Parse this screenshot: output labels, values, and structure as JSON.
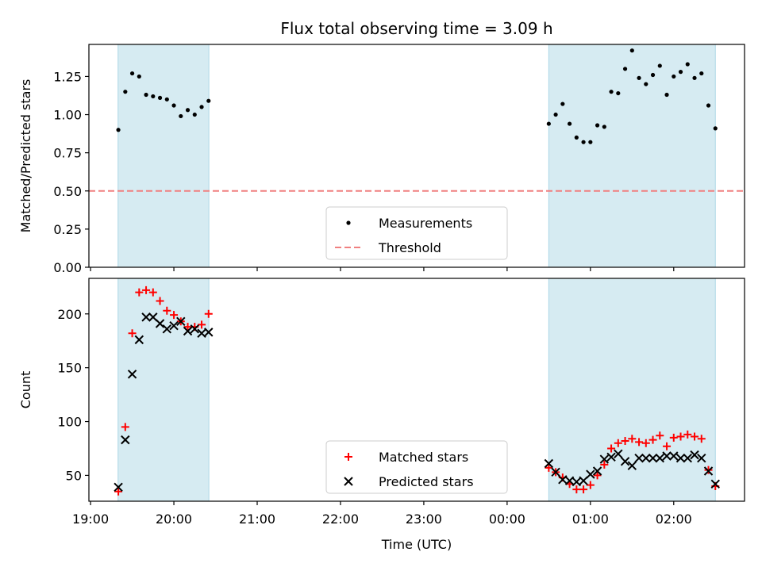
{
  "chart_data": {
    "type": "scatter",
    "title": "Flux total observing time = 3.09 h",
    "xlabel": "Time (UTC)",
    "x_tick_labels": [
      "19:00",
      "20:00",
      "21:00",
      "22:00",
      "23:00",
      "00:00",
      "01:00",
      "02:00"
    ],
    "x_tick_hours": [
      0,
      1,
      2,
      3,
      4,
      5,
      6,
      7
    ],
    "x_origin": "19:00",
    "xlim_hours": [
      -0.02,
      7.85
    ],
    "shaded_regions_hours": [
      [
        0.33,
        1.42
      ],
      [
        5.5,
        7.5
      ]
    ],
    "shade_color": "#add8e6",
    "panels": [
      {
        "ylabel": "Matched/Predicted stars",
        "ylim": [
          0.0,
          1.46
        ],
        "yticks": [
          0.0,
          0.25,
          0.5,
          0.75,
          1.0,
          1.25
        ],
        "ytick_labels": [
          "0.00",
          "0.25",
          "0.50",
          "0.75",
          "1.00",
          "1.25"
        ],
        "threshold": {
          "name": "Threshold",
          "value": 0.5,
          "color": "#f08080"
        },
        "legend": {
          "position": "lower-center",
          "entries": [
            "Measurements",
            "Threshold"
          ]
        },
        "series": [
          {
            "name": "Measurements",
            "marker": "dot",
            "color": "#000000",
            "points": [
              [
                "19:20",
                0.9
              ],
              [
                "19:25",
                1.15
              ],
              [
                "19:30",
                1.27
              ],
              [
                "19:35",
                1.25
              ],
              [
                "19:40",
                1.13
              ],
              [
                "19:45",
                1.12
              ],
              [
                "19:50",
                1.11
              ],
              [
                "19:55",
                1.1
              ],
              [
                "20:00",
                1.06
              ],
              [
                "20:05",
                0.99
              ],
              [
                "20:10",
                1.03
              ],
              [
                "20:15",
                1.0
              ],
              [
                "20:20",
                1.05
              ],
              [
                "20:25",
                1.09
              ],
              [
                "00:30",
                0.94
              ],
              [
                "00:35",
                1.0
              ],
              [
                "00:40",
                1.07
              ],
              [
                "00:45",
                0.94
              ],
              [
                "00:50",
                0.85
              ],
              [
                "00:55",
                0.82
              ],
              [
                "01:00",
                0.82
              ],
              [
                "01:05",
                0.93
              ],
              [
                "01:10",
                0.92
              ],
              [
                "01:15",
                1.15
              ],
              [
                "01:20",
                1.14
              ],
              [
                "01:25",
                1.3
              ],
              [
                "01:30",
                1.42
              ],
              [
                "01:35",
                1.24
              ],
              [
                "01:40",
                1.2
              ],
              [
                "01:45",
                1.26
              ],
              [
                "01:50",
                1.32
              ],
              [
                "01:55",
                1.13
              ],
              [
                "02:00",
                1.25
              ],
              [
                "02:05",
                1.28
              ],
              [
                "02:10",
                1.33
              ],
              [
                "02:15",
                1.24
              ],
              [
                "02:20",
                1.27
              ],
              [
                "02:25",
                1.06
              ],
              [
                "02:30",
                0.91
              ]
            ]
          }
        ]
      },
      {
        "ylabel": "Count",
        "ylim": [
          26,
          233
        ],
        "yticks": [
          50,
          100,
          150,
          200
        ],
        "ytick_labels": [
          "50",
          "100",
          "150",
          "200"
        ],
        "legend": {
          "position": "lower-center",
          "entries": [
            "Matched stars",
            "Predicted stars"
          ]
        },
        "series": [
          {
            "name": "Matched stars",
            "marker": "plus",
            "color": "#ff0000",
            "points": [
              [
                "19:20",
                35
              ],
              [
                "19:25",
                95
              ],
              [
                "19:30",
                182
              ],
              [
                "19:35",
                220
              ],
              [
                "19:40",
                222
              ],
              [
                "19:45",
                220
              ],
              [
                "19:50",
                212
              ],
              [
                "19:55",
                203
              ],
              [
                "20:00",
                199
              ],
              [
                "20:05",
                193
              ],
              [
                "20:10",
                188
              ],
              [
                "20:15",
                188
              ],
              [
                "20:20",
                190
              ],
              [
                "20:25",
                200
              ],
              [
                "00:30",
                57
              ],
              [
                "00:35",
                53
              ],
              [
                "00:40",
                48
              ],
              [
                "00:45",
                42
              ],
              [
                "00:50",
                37
              ],
              [
                "00:55",
                37
              ],
              [
                "01:00",
                41
              ],
              [
                "01:05",
                50
              ],
              [
                "01:10",
                60
              ],
              [
                "01:15",
                75
              ],
              [
                "01:20",
                80
              ],
              [
                "01:25",
                82
              ],
              [
                "01:30",
                84
              ],
              [
                "01:35",
                81
              ],
              [
                "01:40",
                80
              ],
              [
                "01:45",
                83
              ],
              [
                "01:50",
                87
              ],
              [
                "01:55",
                77
              ],
              [
                "02:00",
                85
              ],
              [
                "02:05",
                86
              ],
              [
                "02:10",
                88
              ],
              [
                "02:15",
                86
              ],
              [
                "02:20",
                84
              ],
              [
                "02:25",
                55
              ],
              [
                "02:30",
                40
              ]
            ]
          },
          {
            "name": "Predicted stars",
            "marker": "x",
            "color": "#000000",
            "points": [
              [
                "19:20",
                39
              ],
              [
                "19:25",
                83
              ],
              [
                "19:30",
                144
              ],
              [
                "19:35",
                176
              ],
              [
                "19:40",
                197
              ],
              [
                "19:45",
                197
              ],
              [
                "19:50",
                191
              ],
              [
                "19:55",
                186
              ],
              [
                "20:00",
                189
              ],
              [
                "20:05",
                193
              ],
              [
                "20:10",
                184
              ],
              [
                "20:15",
                186
              ],
              [
                "20:20",
                182
              ],
              [
                "20:25",
                183
              ],
              [
                "00:30",
                61
              ],
              [
                "00:35",
                53
              ],
              [
                "00:40",
                46
              ],
              [
                "00:45",
                45
              ],
              [
                "00:50",
                44
              ],
              [
                "00:55",
                45
              ],
              [
                "01:00",
                51
              ],
              [
                "01:05",
                54
              ],
              [
                "01:10",
                65
              ],
              [
                "01:15",
                67
              ],
              [
                "01:20",
                70
              ],
              [
                "01:25",
                63
              ],
              [
                "01:30",
                59
              ],
              [
                "01:35",
                66
              ],
              [
                "01:40",
                66
              ],
              [
                "01:45",
                66
              ],
              [
                "01:50",
                66
              ],
              [
                "01:55",
                68
              ],
              [
                "02:00",
                68
              ],
              [
                "02:05",
                66
              ],
              [
                "02:10",
                66
              ],
              [
                "02:15",
                69
              ],
              [
                "02:20",
                66
              ],
              [
                "02:25",
                54
              ],
              [
                "02:30",
                42
              ]
            ]
          }
        ]
      }
    ]
  }
}
